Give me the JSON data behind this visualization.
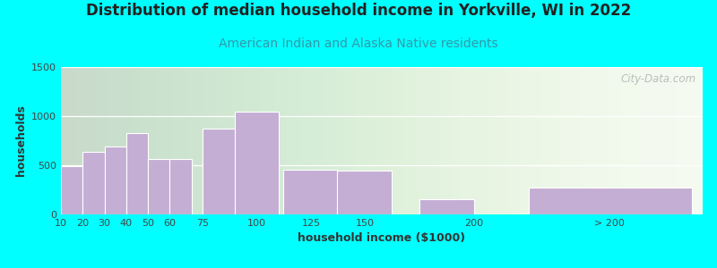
{
  "title": "Distribution of median household income in Yorkville, WI in 2022",
  "subtitle": "American Indian and Alaska Native residents",
  "xlabel": "household income ($1000)",
  "ylabel": "households",
  "bg_outer": "#00FFFF",
  "bar_color": "#C4AED4",
  "subtitle_color": "#3399AA",
  "title_color": "#222222",
  "bar_values": [
    490,
    635,
    690,
    830,
    565,
    560,
    870,
    1050,
    455,
    450,
    155,
    275
  ],
  "bar_lefts": [
    10,
    20,
    30,
    40,
    50,
    60,
    75,
    90,
    112,
    137,
    175,
    225
  ],
  "bar_widths": [
    10,
    10,
    10,
    10,
    10,
    10,
    15,
    20,
    25,
    25,
    25,
    75
  ],
  "xtick_pos": [
    10,
    20,
    30,
    40,
    50,
    60,
    75,
    100,
    125,
    150,
    200,
    262
  ],
  "xlabels": [
    "10",
    "20",
    "30",
    "40",
    "50",
    "60",
    "75",
    "100",
    "125",
    "150",
    "200",
    "> 200"
  ],
  "ylim": [
    0,
    1500
  ],
  "yticks": [
    0,
    500,
    1000,
    1500
  ],
  "watermark": "City-Data.com",
  "title_fontsize": 12,
  "subtitle_fontsize": 10,
  "axis_fontsize": 9,
  "tick_fontsize": 8
}
